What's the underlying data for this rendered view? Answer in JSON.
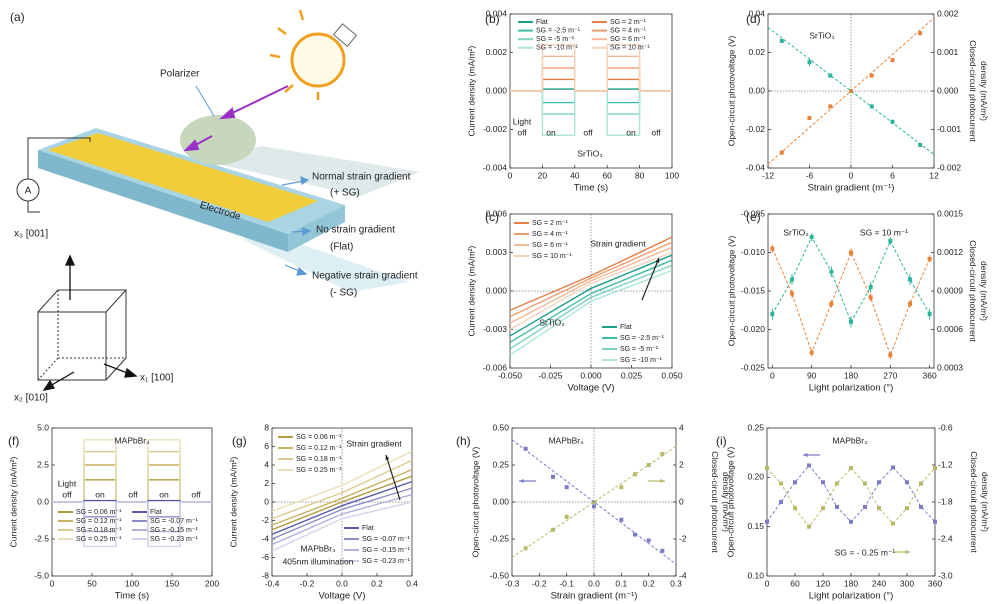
{
  "diagram": {
    "panel": "(a)",
    "polarizer": "Polarizer",
    "normal": "Normal strain gradient",
    "normal_sg": "(+ SG)",
    "flat": "No strain gradient",
    "flat_sg": "(Flat)",
    "negative": "Negative strain gradient",
    "negative_sg": "(- SG)",
    "electrode": "Electrode",
    "ammeter": "A",
    "x3": "x₃ [001]",
    "x1": "x₁ [100]",
    "x2": "x₂ [010]"
  },
  "chart_data": [
    {
      "type": "line",
      "label": "(b)",
      "xlabel": "Time (s)",
      "ylabel": "Current density (mA/m²)",
      "xlim": [
        0,
        100
      ],
      "xticks": [
        0,
        20,
        40,
        60,
        80,
        100
      ],
      "ylim": [
        -0.004,
        0.004
      ],
      "yticks": [
        -0.004,
        -0.002,
        {
          "value": 0,
          "label": "0.000"
        },
        0.002,
        0.004
      ],
      "x": [
        0,
        20,
        20,
        40,
        40,
        60,
        60,
        80,
        80,
        100
      ],
      "series": [
        {
          "name": "Flat",
          "color": "#1a9e85",
          "values": [
            0,
            0,
            0.0001,
            0.0001,
            0,
            0,
            0.0001,
            0.0001,
            0,
            0
          ]
        },
        {
          "name": "SG = -2.5 m⁻¹",
          "color": "#3fbca3",
          "values": [
            0,
            0,
            -0.0006,
            -0.0006,
            0,
            0,
            -0.0006,
            -0.0006,
            0,
            0
          ]
        },
        {
          "name": "SG = -5 m⁻¹",
          "color": "#7fd3c0",
          "values": [
            0,
            0,
            -0.0012,
            -0.0012,
            0,
            0,
            -0.0012,
            -0.0012,
            0,
            0
          ]
        },
        {
          "name": "SG = -10 m⁻¹",
          "color": "#aee5d9",
          "values": [
            0,
            0,
            -0.0023,
            -0.0023,
            0,
            0,
            -0.0023,
            -0.0023,
            0,
            0
          ]
        },
        {
          "name": "SG = 2 m⁻¹",
          "color": "#e67e45",
          "values": [
            0,
            0,
            0.0006,
            0.0006,
            0,
            0,
            0.0006,
            0.0006,
            0,
            0
          ]
        },
        {
          "name": "SG = 4 m⁻¹",
          "color": "#ee9d6e",
          "values": [
            0,
            0,
            0.0012,
            0.0012,
            0,
            0,
            0.0012,
            0.0012,
            0,
            0
          ]
        },
        {
          "name": "SG = 6 m⁻¹",
          "color": "#f3b996",
          "values": [
            0,
            0,
            0.0018,
            0.0018,
            0,
            0,
            0.0018,
            0.0018,
            0,
            0
          ]
        },
        {
          "name": "SG = 10 m⁻¹",
          "color": "#f7d3bb",
          "values": [
            0,
            0,
            0.0024,
            0.0024,
            0,
            0,
            0.0024,
            0.0024,
            0,
            0
          ]
        }
      ],
      "annotations": [
        "Light",
        "off",
        "on",
        "off",
        "on",
        "off",
        "SrTiO₃"
      ]
    },
    {
      "type": "scatter",
      "label": "(d)",
      "xlabel": "Strain gradient (m⁻¹)",
      "ylabel": "Open-circuit photovoltage (V)",
      "y2label": [
        "Closed-circuit photocurrent",
        "density (mA/m²)"
      ],
      "xlim": [
        -12,
        12
      ],
      "xticks": [
        -12,
        -6,
        0,
        6,
        12
      ],
      "ylim": [
        -0.04,
        0.04
      ],
      "yticks": [
        -0.04,
        -0.02,
        {
          "value": 0,
          "label": "0.00"
        },
        0.02,
        0.04
      ],
      "y2lim": [
        -0.002,
        0.002
      ],
      "y2ticks": [
        -0.002,
        -0.001,
        {
          "value": 0,
          "label": "0.000"
        },
        0.001,
        0.002
      ],
      "zero_lines": true,
      "x": [
        -10,
        -6,
        -3,
        0,
        3,
        6,
        10
      ],
      "series": [
        {
          "color": "#2db49a",
          "marker": true,
          "values": [
            0.026,
            0.015,
            0.008,
            0,
            -0.008,
            -0.016,
            -0.028
          ],
          "errors": [
            0.001,
            0.002,
            0.001,
            0.001,
            0.001,
            0.001,
            0.001
          ]
        },
        {
          "color": "#e8833a",
          "axis": "y2",
          "marker": true,
          "values": [
            -0.0016,
            -0.0007,
            -0.0004,
            0,
            0.0004,
            0.0008,
            0.0015
          ],
          "errors": [
            5e-05,
            5e-05,
            5e-05,
            5e-05,
            5e-05,
            5e-05,
            5e-05
          ]
        },
        {
          "color": "#2db49a",
          "line": "dashed",
          "x": [
            -12,
            12
          ],
          "values": [
            0.033,
            -0.033
          ]
        },
        {
          "color": "#e8833a",
          "axis": "y2",
          "line": "dashed",
          "x": [
            -12,
            12
          ],
          "values": [
            -0.0019,
            0.0019
          ]
        }
      ],
      "annotations": [
        "SrTiO₃"
      ]
    },
    {
      "type": "line",
      "label": "(c)",
      "xlabel": "Voltage (V)",
      "ylabel": "Current density (mA/m²)",
      "xlim": [
        -0.05,
        0.05
      ],
      "xticks": [
        {
          "value": -0.05,
          "label": "-0.050"
        },
        -0.025,
        {
          "value": 0,
          "label": "0.000"
        },
        0.025,
        {
          "value": 0.05,
          "label": "0.050"
        }
      ],
      "ylim": [
        -0.006,
        0.006
      ],
      "yticks": [
        -0.006,
        -0.003,
        {
          "value": 0,
          "label": "0.000"
        },
        0.003,
        0.006
      ],
      "zero_lines": true,
      "x": [
        -0.05,
        0,
        0.05
      ],
      "series": [
        {
          "name": "SG = 2 m⁻¹",
          "color": "#e67e45",
          "values": [
            -0.0015,
            0.0012,
            0.0042
          ]
        },
        {
          "name": "SG = 4 m⁻¹",
          "color": "#ee9d6e",
          "values": [
            -0.002,
            0.001,
            0.0038
          ]
        },
        {
          "name": "SG = 6 m⁻¹",
          "color": "#f3b996",
          "values": [
            -0.0025,
            0.0008,
            0.0034
          ]
        },
        {
          "name": "SG = 10 m⁻¹",
          "color": "#f7d3bb",
          "values": [
            -0.003,
            0.0006,
            0.003
          ]
        },
        {
          "name": "Flat",
          "color": "#1a9e85",
          "values": [
            -0.0035,
            0.0002,
            0.0028
          ]
        },
        {
          "name": "SG = -2.5 m⁻¹",
          "color": "#3fbca3",
          "values": [
            -0.004,
            -0.0002,
            0.0024
          ]
        },
        {
          "name": "SG = -5 m⁻¹",
          "color": "#7fd3c0",
          "values": [
            -0.0045,
            -0.0005,
            0.002
          ]
        },
        {
          "name": "SG = -10 m⁻¹",
          "color": "#aee5d9",
          "values": [
            -0.005,
            -0.0008,
            0.0016
          ]
        }
      ],
      "annotations": [
        "Strain gradient",
        "SrTiO₃"
      ]
    },
    {
      "type": "scatter",
      "label": "(e)",
      "xlabel": "Light polarization (°)",
      "ylabel": "Open-circuit photovoltage (V)",
      "y2label": [
        "Closed-circuit photocurrent",
        "density (mA/m²)"
      ],
      "xlim": [
        -10,
        370
      ],
      "xticks": [
        0,
        90,
        180,
        270,
        360
      ],
      "ylim": [
        -0.025,
        -0.005
      ],
      "yticks": [
        -0.025,
        {
          "value": -0.02,
          "label": "-0.020"
        },
        -0.015,
        {
          "value": -0.01,
          "label": "-0.010"
        },
        -0.005
      ],
      "y2lim": [
        0.0003,
        0.0015
      ],
      "y2ticks": [
        0.0003,
        0.0006,
        0.0009,
        0.0012,
        0.0015
      ],
      "x": [
        0,
        45,
        90,
        135,
        180,
        225,
        270,
        315,
        360
      ],
      "series": [
        {
          "color": "#2db49a",
          "marker": true,
          "line": "dashed",
          "values": [
            -0.018,
            -0.0135,
            -0.008,
            -0.0125,
            -0.019,
            -0.0145,
            -0.0085,
            -0.0135,
            -0.018
          ],
          "errors": [
            0.0007,
            0.0007,
            0.0005,
            0.0007,
            0.0007,
            0.0007,
            0.0005,
            0.0007,
            0.0007
          ]
        },
        {
          "color": "#e8833a",
          "axis": "y2",
          "marker": true,
          "line": "dashed",
          "values": [
            0.00123,
            0.00088,
            0.00042,
            0.0008,
            0.0012,
            0.00085,
            0.0004,
            0.0008,
            0.00115
          ],
          "errors": [
            3e-05,
            3e-05,
            3e-05,
            3e-05,
            3e-05,
            3e-05,
            3e-05,
            3e-05,
            3e-05
          ]
        }
      ],
      "annotations": [
        "SrTiO₃",
        "SG = 10 m⁻¹"
      ]
    },
    {
      "type": "line",
      "label": "(f)",
      "xlabel": "Time (s)",
      "ylabel": "Current density (mA/m²)",
      "xlim": [
        0,
        200
      ],
      "xticks": [
        0,
        50,
        100,
        150,
        200
      ],
      "ylim": [
        -5,
        5
      ],
      "yticks": [
        {
          "value": -5,
          "label": "-5.0"
        },
        -2.5,
        {
          "value": 0,
          "label": "0.0"
        },
        2.5,
        {
          "value": 5,
          "label": "5.0"
        }
      ],
      "x": [
        0,
        40,
        40,
        80,
        80,
        120,
        120,
        160,
        160,
        200
      ],
      "series": [
        {
          "name": "SG = 0.06 m⁻¹",
          "color": "#b39a3a",
          "values": [
            0,
            0,
            1.5,
            1.5,
            0,
            0,
            1.5,
            1.5,
            0,
            0
          ]
        },
        {
          "name": "SG = 0.12 m⁻¹",
          "color": "#c9b262",
          "values": [
            0,
            0,
            2.5,
            2.5,
            0,
            0,
            2.5,
            2.5,
            0,
            0
          ]
        },
        {
          "name": "SG = 0.18 m⁻¹",
          "color": "#dbc98e",
          "values": [
            0,
            0,
            3.4,
            3.4,
            0,
            0,
            3.4,
            3.4,
            0,
            0
          ]
        },
        {
          "name": "SG = 0.25 m⁻¹",
          "color": "#e9dfb8",
          "values": [
            0,
            0,
            4.2,
            4.2,
            0,
            0,
            4.2,
            4.2,
            0,
            0
          ]
        },
        {
          "name": "Flat",
          "color": "#5a5aa8",
          "values": [
            0,
            0,
            0.1,
            0.1,
            0,
            0,
            0.1,
            0.1,
            0,
            0
          ]
        },
        {
          "name": "SG = -0.07 m⁻¹",
          "color": "#8b8bc9",
          "values": [
            0,
            0,
            -1,
            -1,
            0,
            0,
            -1,
            -1,
            0,
            0
          ]
        },
        {
          "name": "SG = -0.15 m⁻¹",
          "color": "#b0b0dc",
          "values": [
            0,
            0,
            -2,
            -2,
            0,
            0,
            -2,
            -2,
            0,
            0
          ]
        },
        {
          "name": "SG = -0.23 m⁻¹",
          "color": "#d2d2ee",
          "values": [
            0,
            0,
            -3,
            -3,
            0,
            0,
            -3,
            -3,
            0,
            0
          ]
        }
      ],
      "annotations": [
        "MAPbBr₃",
        "Light",
        "off",
        "on",
        "off",
        "on",
        "off"
      ]
    },
    {
      "type": "line",
      "label": "(g)",
      "xlabel": "Voltage (V)",
      "ylabel": "Current density (mA/m²)",
      "xlim": [
        -0.4,
        0.4
      ],
      "xticks": [
        -0.4,
        -0.2,
        {
          "value": 0,
          "label": "0.0"
        },
        0.2,
        0.4
      ],
      "ylim": [
        -8,
        8
      ],
      "yticks": [
        -8,
        -6,
        -4,
        -2,
        0,
        2,
        4,
        6,
        8
      ],
      "zero_lines": true,
      "x": [
        -0.4,
        0,
        0.4
      ],
      "series": [
        {
          "name": "SG = 0.06 m⁻¹",
          "color": "#b39a3a",
          "values": [
            -3,
            0,
            2.8
          ]
        },
        {
          "name": "SG = 0.12 m⁻¹",
          "color": "#c9b262",
          "values": [
            -2.5,
            0.4,
            3.5
          ]
        },
        {
          "name": "SG = 0.18 m⁻¹",
          "color": "#dbc98e",
          "values": [
            -1.8,
            1,
            4.5
          ]
        },
        {
          "name": "SG = 0.25 m⁻¹",
          "color": "#e9dfb8",
          "values": [
            -1,
            1.8,
            5.5
          ]
        },
        {
          "name": "Flat",
          "color": "#5a5aa8",
          "values": [
            -3.5,
            -0.4,
            2.2
          ]
        },
        {
          "name": "SG = -0.07 m⁻¹",
          "color": "#8b8bc9",
          "values": [
            -4,
            -0.8,
            1.5
          ]
        },
        {
          "name": "SG = -0.15 m⁻¹",
          "color": "#b0b0dc",
          "values": [
            -4.6,
            -1.3,
            0.8
          ]
        },
        {
          "name": "SG = -0.23 m⁻¹",
          "color": "#d2d2ee",
          "values": [
            -5.3,
            -1.8,
            0
          ]
        }
      ],
      "annotations": [
        "Strain gradient",
        "MAPbBr₃",
        "405nm illumination"
      ]
    },
    {
      "type": "scatter",
      "label": "(h)",
      "xlabel": "Strain gradient (m⁻¹)",
      "ylabel": "Open-circuit photovoltage (V)",
      "y2label": [
        "Closed-circuit photocurrent",
        "density (mA/m²)"
      ],
      "xlim": [
        -0.3,
        0.3
      ],
      "xticks": [
        -0.3,
        -0.2,
        -0.1,
        {
          "value": 0,
          "label": "0.0"
        },
        0.1,
        0.2,
        0.3
      ],
      "ylim": [
        -0.5,
        0.5
      ],
      "yticks": [
        {
          "value": -0.5,
          "label": "-0.50"
        },
        -0.25,
        {
          "value": 0,
          "label": "0.00"
        },
        0.25,
        {
          "value": 0.5,
          "label": "0.50"
        }
      ],
      "y2lim": [
        -4,
        4
      ],
      "y2ticks": [
        -4,
        -2,
        0,
        2,
        4
      ],
      "zero_lines": true,
      "x": [
        -0.25,
        -0.15,
        -0.1,
        0,
        0.1,
        0.15,
        0.2,
        0.25
      ],
      "series": [
        {
          "color": "#7b7bc8",
          "marker": true,
          "values": [
            0.36,
            0.17,
            0.1,
            -0.03,
            -0.12,
            -0.22,
            -0.26,
            -0.33
          ]
        },
        {
          "color": "#b9b96a",
          "axis": "y2",
          "marker": true,
          "values": [
            -2.5,
            -1.5,
            -0.8,
            0,
            0.8,
            1.5,
            2,
            2.6
          ]
        },
        {
          "color": "#7b7bc8",
          "line": "dashed",
          "x": [
            -0.3,
            0.3
          ],
          "values": [
            0.42,
            -0.42
          ]
        },
        {
          "color": "#b9b96a",
          "axis": "y2",
          "line": "dashed",
          "x": [
            -0.3,
            0.3
          ],
          "values": [
            -3,
            3
          ]
        }
      ],
      "annotations": [
        "MAPbBr₃"
      ]
    },
    {
      "type": "scatter",
      "label": "(i)",
      "xlabel": "Light polarization (°)",
      "ylabel": "Open-circuit photovoltage (V)",
      "y2label": [
        "Closed-circuit photocurrent",
        "density (mA/m²)"
      ],
      "xlim": [
        0,
        360
      ],
      "xticks": [
        0,
        60,
        120,
        180,
        240,
        300,
        360
      ],
      "ylim": [
        0.1,
        0.25
      ],
      "yticks": [
        {
          "value": 0.1,
          "label": "0.10"
        },
        0.15,
        {
          "value": 0.2,
          "label": "0.20"
        },
        0.25
      ],
      "y2lim": [
        -3,
        -0.6
      ],
      "y2ticks": [
        -0.6,
        -1.2,
        -1.8,
        -2.4,
        {
          "value": -3,
          "label": "-3.0"
        }
      ],
      "x": [
        0,
        30,
        60,
        90,
        120,
        150,
        180,
        210,
        240,
        270,
        300,
        330,
        360
      ],
      "series": [
        {
          "color": "#7b7bc8",
          "marker": true,
          "line": "dashed",
          "values": [
            0.155,
            0.175,
            0.195,
            0.212,
            0.195,
            0.17,
            0.155,
            0.17,
            0.195,
            0.21,
            0.195,
            0.17,
            0.155
          ]
        },
        {
          "color": "#b9b96a",
          "axis": "y2",
          "marker": true,
          "line": "dashed",
          "values": [
            -1.25,
            -1.5,
            -1.9,
            -2.2,
            -1.9,
            -1.5,
            -1.25,
            -1.5,
            -1.9,
            -2.15,
            -1.9,
            -1.5,
            -1.25
          ]
        }
      ],
      "annotations": [
        "MAPbBr₃",
        "SG = - 0.25 m⁻¹"
      ]
    }
  ]
}
